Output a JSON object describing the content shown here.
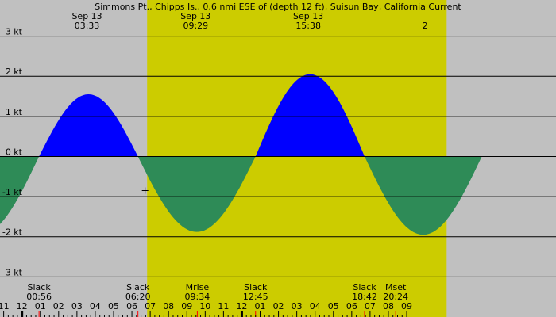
{
  "chart_data": {
    "type": "area",
    "title": "Simmons Pt., Chipps Is., 0.6 nmi ESE of (depth 12 ft), Suisun Bay, California Current",
    "units": "kt",
    "ylim": [
      -4.0,
      3.9
    ],
    "xlim_hours": [
      -1.2,
      29.15
    ],
    "daylight_hours": [
      6.83,
      23.18
    ],
    "y_ticks": [
      {
        "value": 3,
        "label": "3 kt"
      },
      {
        "value": 2,
        "label": "2 kt"
      },
      {
        "value": 1,
        "label": "1 kt"
      },
      {
        "value": 0,
        "label": "0 kt"
      },
      {
        "value": -1,
        "label": "-1 kt"
      },
      {
        "value": -2,
        "label": "-2 kt"
      },
      {
        "value": -3,
        "label": "-3 kt"
      }
    ],
    "x_ticks": [
      {
        "hour": -1,
        "label": "11"
      },
      {
        "hour": 0,
        "label": "12"
      },
      {
        "hour": 1,
        "label": "01"
      },
      {
        "hour": 2,
        "label": "02"
      },
      {
        "hour": 3,
        "label": "03"
      },
      {
        "hour": 4,
        "label": "04"
      },
      {
        "hour": 5,
        "label": "05"
      },
      {
        "hour": 6,
        "label": "06"
      },
      {
        "hour": 7,
        "label": "07"
      },
      {
        "hour": 8,
        "label": "08"
      },
      {
        "hour": 9,
        "label": "09"
      },
      {
        "hour": 10,
        "label": "10"
      },
      {
        "hour": 11,
        "label": "11"
      },
      {
        "hour": 12,
        "label": "12"
      },
      {
        "hour": 13,
        "label": "01"
      },
      {
        "hour": 14,
        "label": "02"
      },
      {
        "hour": 15,
        "label": "03"
      },
      {
        "hour": 16,
        "label": "04"
      },
      {
        "hour": 17,
        "label": "05"
      },
      {
        "hour": 18,
        "label": "06"
      },
      {
        "hour": 19,
        "label": "07"
      },
      {
        "hour": 20,
        "label": "08"
      },
      {
        "hour": 21,
        "label": "09"
      }
    ],
    "events_top": [
      {
        "hour": 3.55,
        "date": "Sep 13",
        "time": "03:33"
      },
      {
        "hour": 9.48,
        "date": "Sep 13",
        "time": "09:29"
      },
      {
        "hour": 15.63,
        "date": "Sep 13",
        "time": "15:38"
      },
      {
        "hour": 22.0,
        "date": "",
        "time": "2"
      }
    ],
    "events_bottom": [
      {
        "hour": 0.93,
        "name": "Slack",
        "time": "00:56"
      },
      {
        "hour": 6.33,
        "name": "Slack",
        "time": "06:20"
      },
      {
        "hour": 9.57,
        "name": "Mrise",
        "time": "09:34"
      },
      {
        "hour": 12.75,
        "name": "Slack",
        "time": "12:45"
      },
      {
        "hour": 18.7,
        "name": "Slack",
        "time": "18:42"
      },
      {
        "hour": 20.4,
        "name": "Mset",
        "time": "20:24"
      }
    ],
    "series": [
      {
        "kind": "flood",
        "start_hour": 0.93,
        "end_hour": 6.33,
        "peak_hour": 3.55,
        "peak": 1.55
      },
      {
        "kind": "ebb",
        "start_hour": 6.33,
        "end_hour": 12.75,
        "peak_hour": 9.48,
        "peak": -1.88
      },
      {
        "kind": "flood",
        "start_hour": 12.75,
        "end_hour": 18.7,
        "peak_hour": 15.63,
        "peak": 2.05
      },
      {
        "kind": "ebb",
        "start_hour": 18.7,
        "end_hour": 25.1,
        "peak_hour": 21.9,
        "peak": -1.95
      },
      {
        "kind": "ebb",
        "start_hour": -5.47,
        "end_hour": 0.93,
        "peak_hour": -2.27,
        "peak": -1.95
      }
    ],
    "current_marker": {
      "hour": 6.72,
      "value": -0.85
    },
    "colors": {
      "night": "#c0c0c0",
      "day": "#cccc00",
      "flood": "#0000ff",
      "ebb": "#2e8b57",
      "grid": "#000000",
      "tick_red": "#ff0000"
    }
  }
}
